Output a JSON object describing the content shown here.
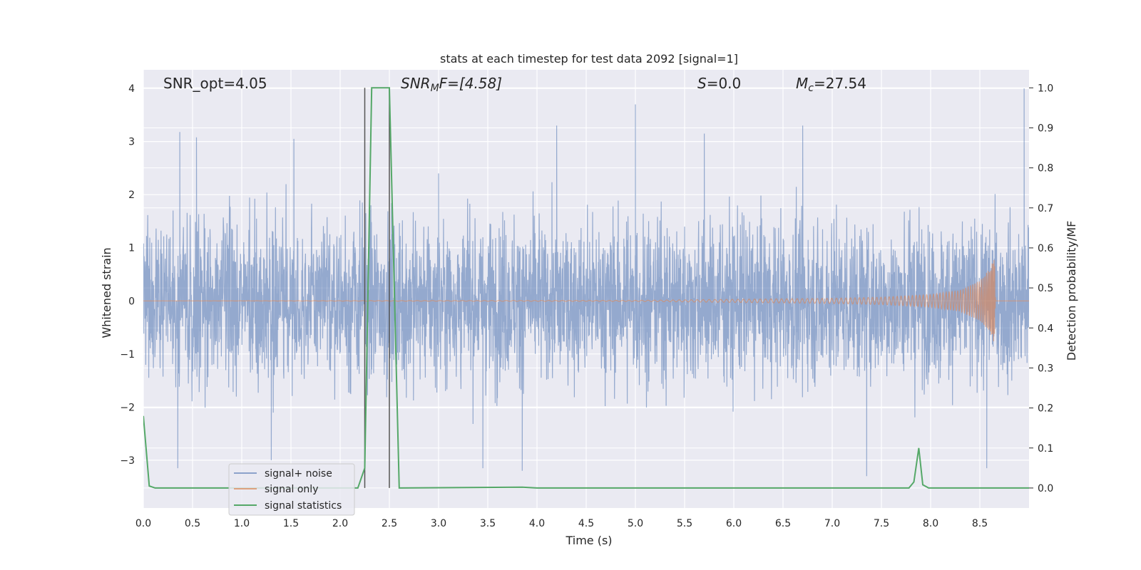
{
  "chart_data": {
    "type": "line",
    "title": "stats at each timestep for test data 2092 [signal=1]",
    "xlabel": "Time (s)",
    "ylabel": "Whitened strain",
    "y2label": "Detection probability/MF",
    "xlim": [
      0.0,
      9.0
    ],
    "ylim": [
      -3.9,
      4.35
    ],
    "y2lim": [
      -0.05,
      1.045
    ],
    "xticks": [
      "0.0",
      "0.5",
      "1.0",
      "1.5",
      "2.0",
      "2.5",
      "3.0",
      "3.5",
      "4.0",
      "4.5",
      "5.0",
      "5.5",
      "6.0",
      "6.5",
      "7.0",
      "7.5",
      "8.0",
      "8.5"
    ],
    "xtick_values": [
      0.0,
      0.5,
      1.0,
      1.5,
      2.0,
      2.5,
      3.0,
      3.5,
      4.0,
      4.5,
      5.0,
      5.5,
      6.0,
      6.5,
      7.0,
      7.5,
      8.0,
      8.5
    ],
    "yticks": [
      "4",
      "3",
      "2",
      "1",
      "0",
      "−1",
      "−2",
      "−3"
    ],
    "ytick_values": [
      4,
      3,
      2,
      1,
      0,
      -1,
      -2,
      -3
    ],
    "y2ticks": [
      "1.0",
      "0.9",
      "0.8",
      "0.7",
      "0.6",
      "0.5",
      "0.4",
      "0.3",
      "0.2",
      "0.1",
      "0.0"
    ],
    "y2tick_values": [
      1.0,
      0.9,
      0.8,
      0.7,
      0.6,
      0.5,
      0.4,
      0.3,
      0.2,
      0.1,
      0.0
    ],
    "grid": true,
    "legend_position": "lower-left",
    "annotations": {
      "snr_opt": "SNR_opt=4.05",
      "snr_mf_main": "SNR",
      "snr_mf_sub": "M",
      "snr_mf_rest": "F=[4.58]",
      "s_main": "S",
      "s_rest": "=0.0",
      "mc_main": "M",
      "mc_sub": "c",
      "mc_rest": "=27.54"
    },
    "vertical_lines_x": [
      2.25,
      2.5
    ],
    "series": [
      {
        "name": "signal+ noise",
        "color": "#4c72b0",
        "description_of_values": "whitened strain noise, roughly uniform amplitude between about -3.2 and 4.0",
        "peaks_max": [
          [
            0.37,
            3.18
          ],
          [
            0.54,
            3.08
          ],
          [
            1.53,
            3.05
          ],
          [
            3.0,
            2.4
          ],
          [
            4.2,
            3.3
          ],
          [
            5.0,
            3.7
          ],
          [
            5.7,
            3.15
          ],
          [
            6.7,
            3.3
          ],
          [
            8.95,
            4.0
          ]
        ],
        "peaks_min": [
          [
            0.35,
            -3.15
          ],
          [
            1.3,
            -3.0
          ],
          [
            3.45,
            -3.15
          ],
          [
            3.85,
            -3.2
          ],
          [
            7.35,
            -3.3
          ],
          [
            8.57,
            -3.15
          ]
        ]
      },
      {
        "name": "signal only",
        "color": "#dd8452",
        "description_of_values": "chirp signal, near zero until ~5.5 s, amplitude grows to about 0.82 at 8.65 s then ends",
        "envelope": [
          [
            0.0,
            0.0
          ],
          [
            5.0,
            0.01
          ],
          [
            6.0,
            0.03
          ],
          [
            7.0,
            0.05
          ],
          [
            7.5,
            0.07
          ],
          [
            8.0,
            0.12
          ],
          [
            8.3,
            0.2
          ],
          [
            8.5,
            0.38
          ],
          [
            8.6,
            0.6
          ],
          [
            8.65,
            0.82
          ],
          [
            8.66,
            0.0
          ]
        ]
      },
      {
        "name": "signal statistics",
        "color": "#55a868",
        "points": [
          [
            0.0,
            0.18
          ],
          [
            0.06,
            0.005
          ],
          [
            0.12,
            0.0
          ],
          [
            2.18,
            0.0
          ],
          [
            2.25,
            0.05
          ],
          [
            2.32,
            1.0
          ],
          [
            2.5,
            1.0
          ],
          [
            2.6,
            0.0
          ],
          [
            3.85,
            0.002
          ],
          [
            4.0,
            0.0
          ],
          [
            7.78,
            0.0
          ],
          [
            7.83,
            0.015
          ],
          [
            7.88,
            0.1
          ],
          [
            7.92,
            0.008
          ],
          [
            7.98,
            0.0
          ],
          [
            9.0,
            0.0
          ]
        ]
      }
    ]
  }
}
